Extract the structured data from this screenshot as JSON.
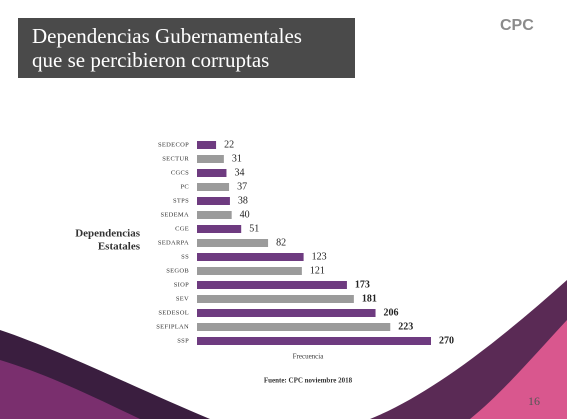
{
  "header": {
    "title": [
      "Dependencias Gubernamentales",
      "que se percibieron corruptas"
    ],
    "logo": "CPC"
  },
  "chart_data": {
    "type": "bar",
    "orientation": "horizontal",
    "categories": [
      "SEDECOP",
      "SECTUR",
      "CGCS",
      "PC",
      "STPS",
      "SEDEMA",
      "CGE",
      "SEDARPA",
      "SS",
      "SEGOB",
      "SIOP",
      "SEV",
      "SEDESOL",
      "SEFIPLAN",
      "SSP"
    ],
    "values": [
      22,
      31,
      34,
      37,
      38,
      40,
      51,
      82,
      123,
      121,
      173,
      181,
      206,
      223,
      270
    ],
    "colors": [
      "#6e3b80",
      "#9b9b9b",
      "#6e3b80",
      "#9b9b9b",
      "#6e3b80",
      "#9b9b9b",
      "#6e3b80",
      "#9b9b9b",
      "#6e3b80",
      "#9b9b9b",
      "#6e3b80",
      "#9b9b9b",
      "#6e3b80",
      "#9b9b9b",
      "#6e3b80"
    ],
    "y_label": [
      "Dependencias",
      "Estatales"
    ],
    "x_label": "Frecuencia",
    "source": "Fuente: CPC noviembre 2018"
  },
  "footer": {
    "page_number": "16"
  }
}
